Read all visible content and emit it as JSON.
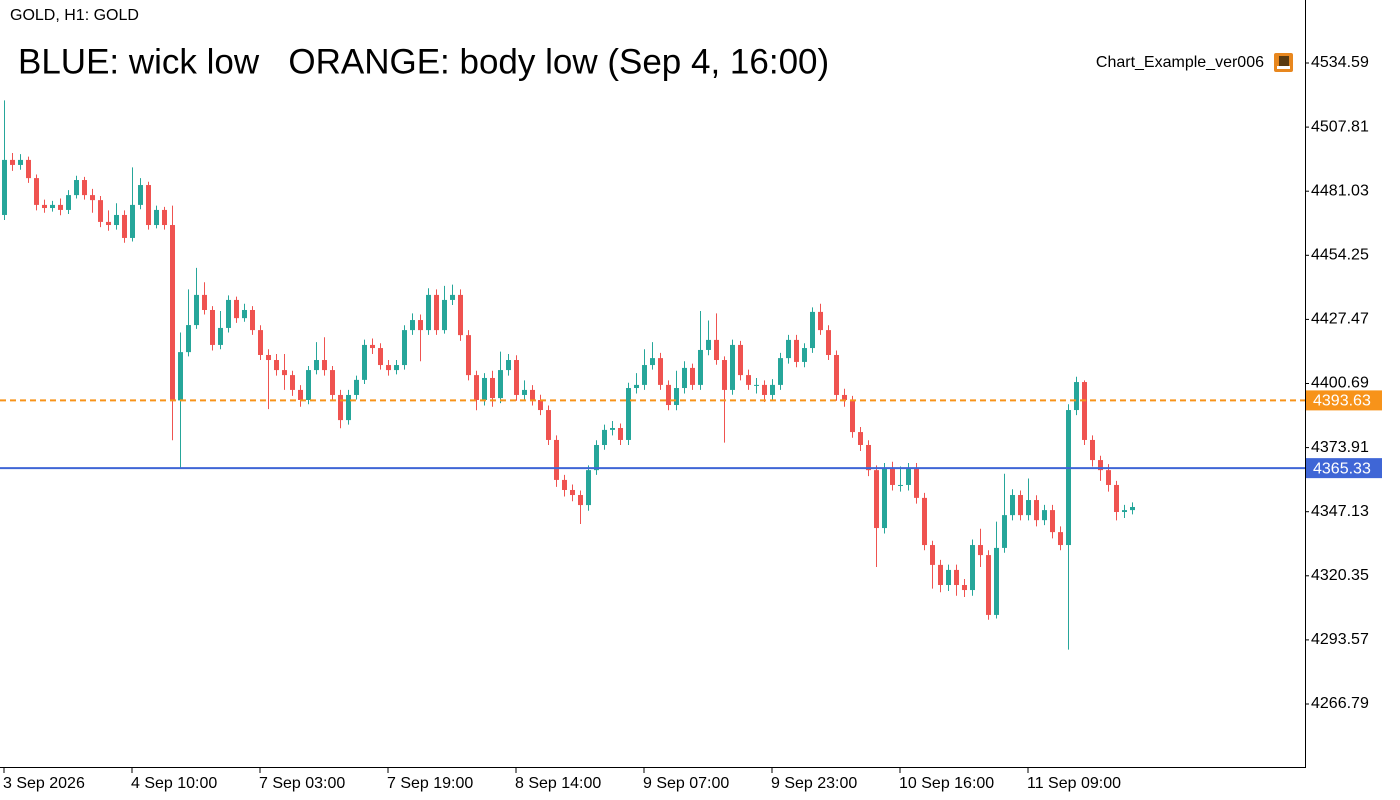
{
  "chart_data": {
    "type": "candlestick",
    "symbol_label": "GOLD, H1:  GOLD",
    "title": "BLUE: wick low   ORANGE: body low (Sep 4, 16:00)",
    "indicator_name": "Chart_Example_ver006",
    "up_color": "#26a69a",
    "down_color": "#ef5350",
    "categories": [
      "3 Sep 2026",
      null,
      null,
      null,
      null,
      null,
      null,
      null,
      null,
      null,
      null,
      null,
      null,
      null,
      null,
      null,
      "4 Sep 10:00",
      null,
      null,
      null,
      null,
      null,
      null,
      null,
      null,
      null,
      null,
      null,
      null,
      null,
      null,
      null,
      "7 Sep 03:00",
      null,
      null,
      null,
      null,
      null,
      null,
      null,
      null,
      null,
      null,
      null,
      null,
      null,
      null,
      null,
      "7 Sep 19:00",
      null,
      null,
      null,
      null,
      null,
      null,
      null,
      null,
      null,
      null,
      null,
      null,
      null,
      null,
      null,
      "8 Sep 14:00",
      null,
      null,
      null,
      null,
      null,
      null,
      null,
      null,
      null,
      null,
      null,
      null,
      null,
      null,
      null,
      "9 Sep 07:00",
      null,
      null,
      null,
      null,
      null,
      null,
      null,
      null,
      null,
      null,
      null,
      null,
      null,
      null,
      null,
      "9 Sep 23:00",
      null,
      null,
      null,
      null,
      null,
      null,
      null,
      null,
      null,
      null,
      null,
      null,
      null,
      null,
      null,
      "10 Sep 16:00",
      null,
      null,
      null,
      null,
      null,
      null,
      null,
      null,
      null,
      null,
      null,
      null,
      null,
      null,
      null,
      "11 Sep 09:00",
      null,
      null,
      null,
      null,
      null,
      null,
      null,
      null,
      null,
      null,
      null,
      null,
      null
    ],
    "open": [
      4471.1,
      4494.1,
      4492.0,
      4494.1,
      4486.5,
      4475.3,
      4474.0,
      4475.3,
      4473.2,
      4479.4,
      4485.7,
      4479.4,
      4477.3,
      4468.2,
      4466.9,
      4471.1,
      4461.5,
      4475.3,
      4483.6,
      4466.9,
      4473.2,
      4466.9,
      4393.63,
      4413.8,
      4425.1,
      4437.7,
      4431.4,
      4416.8,
      4423.9,
      4435.6,
      4428.0,
      4431.4,
      4423.0,
      4412.6,
      4410.5,
      4406.3,
      4404.2,
      4398.0,
      4393.8,
      4406.3,
      4410.5,
      4406.3,
      4395.9,
      4385.4,
      4395.9,
      4402.2,
      4416.8,
      4415.5,
      4408.4,
      4406.3,
      4408.4,
      4423.0,
      4427.2,
      4423.0,
      4437.7,
      4423.0,
      4435.6,
      4437.7,
      4420.9,
      4404.2,
      4393.8,
      4403.0,
      4394.6,
      4406.3,
      4410.5,
      4395.9,
      4398.0,
      4393.8,
      4389.6,
      4377.1,
      4360.4,
      4356.2,
      4354.1,
      4349.9,
      4364.5,
      4375.0,
      4381.3,
      4382.1,
      4377.1,
      4398.8,
      4400.1,
      4408.4,
      4411.3,
      4400.1,
      4391.7,
      4398.8,
      4407.2,
      4400.1,
      4414.7,
      4418.9,
      4410.5,
      4398.0,
      4416.8,
      4404.2,
      4400.1,
      4400.1,
      4395.9,
      4400.1,
      4411.3,
      4418.9,
      4409.7,
      4415.5,
      4430.6,
      4423.0,
      4412.6,
      4395.9,
      4393.8,
      4380.4,
      4375.0,
      4364.5,
      4340.3,
      4365.4,
      4358.3,
      4358.3,
      4365.4,
      4352.9,
      4333.2,
      4324.9,
      4316.5,
      4322.8,
      4316.5,
      4314.4,
      4333.2,
      4329.0,
      4304.0,
      4332.0,
      4345.7,
      4354.1,
      4345.7,
      4352.0,
      4343.6,
      4347.8,
      4338.6,
      4333.2,
      4389.6,
      4401.3,
      4377.1,
      4368.7,
      4364.5,
      4358.3,
      4347.0,
      4347.8
    ],
    "high": [
      4519.0,
      4497.0,
      4496.5,
      4495.5,
      4488.0,
      4477.5,
      4477.0,
      4478.0,
      4481.5,
      4487.5,
      4487.0,
      4482.0,
      4479.0,
      4473.0,
      4476.0,
      4473.0,
      4491.0,
      4486.5,
      4485.0,
      4475.0,
      4474.5,
      4475.0,
      4422.0,
      4440.0,
      4449.0,
      4443.0,
      4433.0,
      4431.0,
      4437.5,
      4437.0,
      4434.0,
      4433.0,
      4425.0,
      4415.0,
      4413.0,
      4413.0,
      4406.0,
      4400.0,
      4408.0,
      4418.0,
      4420.0,
      4408.0,
      4398.0,
      4398.0,
      4404.0,
      4419.0,
      4419.5,
      4417.5,
      4410.5,
      4410.5,
      4425.0,
      4430.0,
      4429.5,
      4440.5,
      4440.0,
      4441.5,
      4442.0,
      4440.0,
      4423.0,
      4406.0,
      4405.0,
      4406.0,
      4414.0,
      4413.0,
      4412.5,
      4402.0,
      4400.0,
      4396.0,
      4391.5,
      4379.0,
      4362.5,
      4358.5,
      4356.0,
      4366.5,
      4377.0,
      4383.5,
      4385.0,
      4384.0,
      4401.0,
      4405.0,
      4415.0,
      4418.0,
      4413.5,
      4402.0,
      4406.0,
      4410.0,
      4409.0,
      4431.0,
      4427.0,
      4430.0,
      4412.0,
      4419.0,
      4418.5,
      4406.5,
      4403.0,
      4402.0,
      4402.5,
      4413.5,
      4421.0,
      4421.0,
      4417.5,
      4432.5,
      4434.0,
      4425.0,
      4414.5,
      4398.5,
      4395.5,
      4382.5,
      4377.0,
      4366.5,
      4367.5,
      4368.0,
      4366.0,
      4367.5,
      4367.5,
      4355.0,
      4335.0,
      4327.0,
      4325.0,
      4325.0,
      4319.0,
      4335.5,
      4340.0,
      4331.0,
      4343.0,
      4363.0,
      4356.5,
      4356.0,
      4361.0,
      4354.0,
      4350.0,
      4350.0,
      4341.0,
      4392.0,
      4403.5,
      4402.0,
      4379.0,
      4370.5,
      4367.0,
      4360.0,
      4350.0,
      4351.0
    ],
    "low": [
      4469.0,
      4489.5,
      4490.0,
      4484.5,
      4473.0,
      4472.0,
      4472.5,
      4471.0,
      4471.5,
      4478.0,
      4477.5,
      4472.0,
      4466.0,
      4464.5,
      4465.0,
      4459.5,
      4460.0,
      4473.5,
      4465.0,
      4465.5,
      4465.0,
      4377.0,
      4365.33,
      4412.0,
      4423.5,
      4429.5,
      4414.5,
      4415.0,
      4422.0,
      4426.0,
      4426.5,
      4421.0,
      4410.5,
      4390.0,
      4404.0,
      4398.0,
      4395.5,
      4391.0,
      4392.0,
      4404.5,
      4404.0,
      4393.5,
      4382.0,
      4383.5,
      4394.0,
      4400.5,
      4413.0,
      4406.5,
      4404.0,
      4404.5,
      4406.5,
      4421.0,
      4410.0,
      4421.0,
      4421.0,
      4421.5,
      4433.5,
      4418.5,
      4402.0,
      4389.5,
      4391.5,
      4391.0,
      4392.5,
      4404.0,
      4393.5,
      4393.5,
      4391.5,
      4387.5,
      4375.0,
      4357.5,
      4353.5,
      4351.5,
      4342.0,
      4347.5,
      4362.5,
      4373.0,
      4379.0,
      4375.0,
      4375.0,
      4396.5,
      4398.0,
      4406.5,
      4398.0,
      4389.5,
      4389.5,
      4396.5,
      4398.0,
      4398.0,
      4412.5,
      4408.5,
      4376.0,
      4396.0,
      4402.0,
      4398.0,
      4396.5,
      4393.0,
      4393.5,
      4398.0,
      4409.0,
      4407.5,
      4407.5,
      4413.5,
      4421.0,
      4410.5,
      4393.5,
      4391.0,
      4378.0,
      4372.5,
      4362.0,
      4324.0,
      4338.0,
      4356.0,
      4355.5,
      4356.0,
      4350.5,
      4331.0,
      4315.0,
      4313.5,
      4314.0,
      4312.0,
      4311.5,
      4312.0,
      4324.0,
      4302.0,
      4302.5,
      4330.0,
      4343.5,
      4343.5,
      4343.5,
      4341.0,
      4341.5,
      4336.0,
      4331.0,
      4289.5,
      4387.5,
      4375.0,
      4366.0,
      4360.0,
      4355.5,
      4343.5,
      4344.5,
      4346.0
    ],
    "close": [
      4494.1,
      4492.0,
      4494.1,
      4486.5,
      4475.3,
      4474.0,
      4475.3,
      4473.2,
      4479.4,
      4485.7,
      4479.4,
      4477.3,
      4468.2,
      4466.9,
      4471.1,
      4461.5,
      4475.3,
      4483.6,
      4466.9,
      4473.2,
      4466.9,
      4393.63,
      4413.8,
      4425.1,
      4437.7,
      4431.4,
      4416.8,
      4423.9,
      4435.6,
      4428.0,
      4431.4,
      4423.0,
      4412.6,
      4410.5,
      4406.3,
      4404.2,
      4398.0,
      4393.8,
      4406.3,
      4410.5,
      4406.3,
      4395.9,
      4385.4,
      4395.9,
      4402.2,
      4416.8,
      4415.5,
      4408.4,
      4406.3,
      4408.4,
      4423.0,
      4427.2,
      4423.0,
      4437.7,
      4423.0,
      4435.6,
      4437.7,
      4420.9,
      4404.2,
      4393.8,
      4403.0,
      4394.6,
      4406.3,
      4410.5,
      4395.9,
      4398.0,
      4393.8,
      4389.6,
      4377.1,
      4360.4,
      4356.2,
      4354.1,
      4349.9,
      4364.5,
      4375.0,
      4381.3,
      4382.1,
      4377.1,
      4398.8,
      4400.1,
      4408.4,
      4411.3,
      4400.1,
      4391.7,
      4398.8,
      4407.2,
      4400.1,
      4414.7,
      4418.9,
      4410.5,
      4398.0,
      4416.8,
      4404.2,
      4400.1,
      4400.1,
      4395.9,
      4400.1,
      4411.3,
      4418.9,
      4409.7,
      4415.5,
      4430.6,
      4423.0,
      4412.6,
      4395.9,
      4393.8,
      4380.4,
      4375.0,
      4364.5,
      4340.3,
      4365.4,
      4358.3,
      4358.3,
      4365.4,
      4352.9,
      4333.2,
      4324.9,
      4316.5,
      4322.8,
      4316.5,
      4314.4,
      4333.2,
      4329.0,
      4304.0,
      4332.0,
      4345.7,
      4354.1,
      4345.7,
      4352.0,
      4343.6,
      4347.8,
      4338.6,
      4333.2,
      4389.6,
      4401.3,
      4377.1,
      4368.7,
      4364.5,
      4358.3,
      4347.0,
      4347.8,
      4349.1
    ],
    "ylim": [
      4240.05,
      4560.91
    ],
    "yticks": [
      4534.59,
      4507.81,
      4481.03,
      4454.25,
      4427.47,
      4400.69,
      4373.91,
      4347.13,
      4320.35,
      4293.57,
      4266.79
    ],
    "hlines": [
      {
        "value": 4393.63,
        "color": "#f7931a",
        "style": "dashed"
      },
      {
        "value": 4365.33,
        "color": "#3f66d6",
        "style": "solid"
      }
    ]
  }
}
